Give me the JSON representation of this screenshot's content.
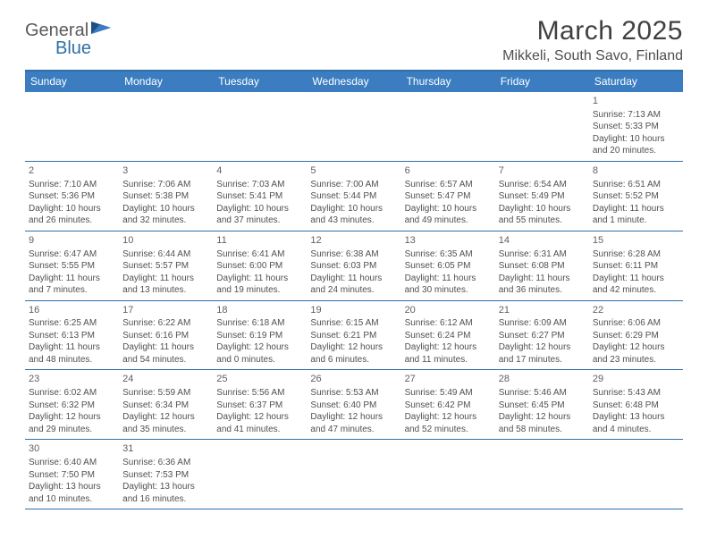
{
  "logo": {
    "text_a": "General",
    "text_b": "Blue"
  },
  "title": "March 2025",
  "location": "Mikkeli, South Savo, Finland",
  "header_bg": "#3b7dc0",
  "border_color": "#2f6fa8",
  "day_names": [
    "Sunday",
    "Monday",
    "Tuesday",
    "Wednesday",
    "Thursday",
    "Friday",
    "Saturday"
  ],
  "weeks": [
    [
      null,
      null,
      null,
      null,
      null,
      null,
      {
        "n": "1",
        "sunrise": "Sunrise: 7:13 AM",
        "sunset": "Sunset: 5:33 PM",
        "daylight": "Daylight: 10 hours and 20 minutes."
      }
    ],
    [
      {
        "n": "2",
        "sunrise": "Sunrise: 7:10 AM",
        "sunset": "Sunset: 5:36 PM",
        "daylight": "Daylight: 10 hours and 26 minutes."
      },
      {
        "n": "3",
        "sunrise": "Sunrise: 7:06 AM",
        "sunset": "Sunset: 5:38 PM",
        "daylight": "Daylight: 10 hours and 32 minutes."
      },
      {
        "n": "4",
        "sunrise": "Sunrise: 7:03 AM",
        "sunset": "Sunset: 5:41 PM",
        "daylight": "Daylight: 10 hours and 37 minutes."
      },
      {
        "n": "5",
        "sunrise": "Sunrise: 7:00 AM",
        "sunset": "Sunset: 5:44 PM",
        "daylight": "Daylight: 10 hours and 43 minutes."
      },
      {
        "n": "6",
        "sunrise": "Sunrise: 6:57 AM",
        "sunset": "Sunset: 5:47 PM",
        "daylight": "Daylight: 10 hours and 49 minutes."
      },
      {
        "n": "7",
        "sunrise": "Sunrise: 6:54 AM",
        "sunset": "Sunset: 5:49 PM",
        "daylight": "Daylight: 10 hours and 55 minutes."
      },
      {
        "n": "8",
        "sunrise": "Sunrise: 6:51 AM",
        "sunset": "Sunset: 5:52 PM",
        "daylight": "Daylight: 11 hours and 1 minute."
      }
    ],
    [
      {
        "n": "9",
        "sunrise": "Sunrise: 6:47 AM",
        "sunset": "Sunset: 5:55 PM",
        "daylight": "Daylight: 11 hours and 7 minutes."
      },
      {
        "n": "10",
        "sunrise": "Sunrise: 6:44 AM",
        "sunset": "Sunset: 5:57 PM",
        "daylight": "Daylight: 11 hours and 13 minutes."
      },
      {
        "n": "11",
        "sunrise": "Sunrise: 6:41 AM",
        "sunset": "Sunset: 6:00 PM",
        "daylight": "Daylight: 11 hours and 19 minutes."
      },
      {
        "n": "12",
        "sunrise": "Sunrise: 6:38 AM",
        "sunset": "Sunset: 6:03 PM",
        "daylight": "Daylight: 11 hours and 24 minutes."
      },
      {
        "n": "13",
        "sunrise": "Sunrise: 6:35 AM",
        "sunset": "Sunset: 6:05 PM",
        "daylight": "Daylight: 11 hours and 30 minutes."
      },
      {
        "n": "14",
        "sunrise": "Sunrise: 6:31 AM",
        "sunset": "Sunset: 6:08 PM",
        "daylight": "Daylight: 11 hours and 36 minutes."
      },
      {
        "n": "15",
        "sunrise": "Sunrise: 6:28 AM",
        "sunset": "Sunset: 6:11 PM",
        "daylight": "Daylight: 11 hours and 42 minutes."
      }
    ],
    [
      {
        "n": "16",
        "sunrise": "Sunrise: 6:25 AM",
        "sunset": "Sunset: 6:13 PM",
        "daylight": "Daylight: 11 hours and 48 minutes."
      },
      {
        "n": "17",
        "sunrise": "Sunrise: 6:22 AM",
        "sunset": "Sunset: 6:16 PM",
        "daylight": "Daylight: 11 hours and 54 minutes."
      },
      {
        "n": "18",
        "sunrise": "Sunrise: 6:18 AM",
        "sunset": "Sunset: 6:19 PM",
        "daylight": "Daylight: 12 hours and 0 minutes."
      },
      {
        "n": "19",
        "sunrise": "Sunrise: 6:15 AM",
        "sunset": "Sunset: 6:21 PM",
        "daylight": "Daylight: 12 hours and 6 minutes."
      },
      {
        "n": "20",
        "sunrise": "Sunrise: 6:12 AM",
        "sunset": "Sunset: 6:24 PM",
        "daylight": "Daylight: 12 hours and 11 minutes."
      },
      {
        "n": "21",
        "sunrise": "Sunrise: 6:09 AM",
        "sunset": "Sunset: 6:27 PM",
        "daylight": "Daylight: 12 hours and 17 minutes."
      },
      {
        "n": "22",
        "sunrise": "Sunrise: 6:06 AM",
        "sunset": "Sunset: 6:29 PM",
        "daylight": "Daylight: 12 hours and 23 minutes."
      }
    ],
    [
      {
        "n": "23",
        "sunrise": "Sunrise: 6:02 AM",
        "sunset": "Sunset: 6:32 PM",
        "daylight": "Daylight: 12 hours and 29 minutes."
      },
      {
        "n": "24",
        "sunrise": "Sunrise: 5:59 AM",
        "sunset": "Sunset: 6:34 PM",
        "daylight": "Daylight: 12 hours and 35 minutes."
      },
      {
        "n": "25",
        "sunrise": "Sunrise: 5:56 AM",
        "sunset": "Sunset: 6:37 PM",
        "daylight": "Daylight: 12 hours and 41 minutes."
      },
      {
        "n": "26",
        "sunrise": "Sunrise: 5:53 AM",
        "sunset": "Sunset: 6:40 PM",
        "daylight": "Daylight: 12 hours and 47 minutes."
      },
      {
        "n": "27",
        "sunrise": "Sunrise: 5:49 AM",
        "sunset": "Sunset: 6:42 PM",
        "daylight": "Daylight: 12 hours and 52 minutes."
      },
      {
        "n": "28",
        "sunrise": "Sunrise: 5:46 AM",
        "sunset": "Sunset: 6:45 PM",
        "daylight": "Daylight: 12 hours and 58 minutes."
      },
      {
        "n": "29",
        "sunrise": "Sunrise: 5:43 AM",
        "sunset": "Sunset: 6:48 PM",
        "daylight": "Daylight: 13 hours and 4 minutes."
      }
    ],
    [
      {
        "n": "30",
        "sunrise": "Sunrise: 6:40 AM",
        "sunset": "Sunset: 7:50 PM",
        "daylight": "Daylight: 13 hours and 10 minutes."
      },
      {
        "n": "31",
        "sunrise": "Sunrise: 6:36 AM",
        "sunset": "Sunset: 7:53 PM",
        "daylight": "Daylight: 13 hours and 16 minutes."
      },
      null,
      null,
      null,
      null,
      null
    ]
  ]
}
